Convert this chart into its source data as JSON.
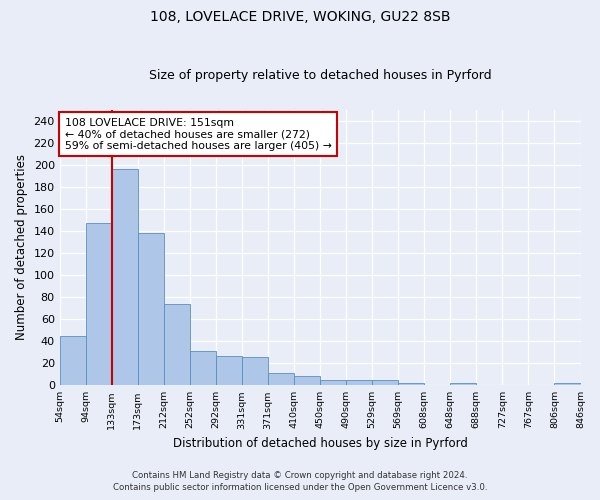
{
  "title1": "108, LOVELACE DRIVE, WOKING, GU22 8SB",
  "title2": "Size of property relative to detached houses in Pyrford",
  "xlabel": "Distribution of detached houses by size in Pyrford",
  "ylabel": "Number of detached properties",
  "bar_labels": [
    "54sqm",
    "94sqm",
    "133sqm",
    "173sqm",
    "212sqm",
    "252sqm",
    "292sqm",
    "331sqm",
    "371sqm",
    "410sqm",
    "450sqm",
    "490sqm",
    "529sqm",
    "569sqm",
    "608sqm",
    "648sqm",
    "688sqm",
    "727sqm",
    "767sqm",
    "806sqm",
    "846sqm"
  ],
  "bar_heights": [
    45,
    147,
    196,
    138,
    74,
    31,
    27,
    26,
    11,
    8,
    5,
    5,
    5,
    2,
    0,
    2,
    0,
    0,
    0,
    2
  ],
  "bar_color": "#aec6e8",
  "bar_edge_color": "#5a8fc0",
  "vline_color": "#cc0000",
  "ylim": [
    0,
    250
  ],
  "yticks": [
    0,
    20,
    40,
    60,
    80,
    100,
    120,
    140,
    160,
    180,
    200,
    220,
    240
  ],
  "annotation_text": "108 LOVELACE DRIVE: 151sqm\n← 40% of detached houses are smaller (272)\n59% of semi-detached houses are larger (405) →",
  "annotation_box_color": "#ffffff",
  "annotation_border_color": "#cc0000",
  "footer1": "Contains HM Land Registry data © Crown copyright and database right 2024.",
  "footer2": "Contains public sector information licensed under the Open Government Licence v3.0.",
  "bg_color": "#e8edf8",
  "plot_bg_color": "#e8edf8",
  "title_fontsize": 10,
  "subtitle_fontsize": 9
}
